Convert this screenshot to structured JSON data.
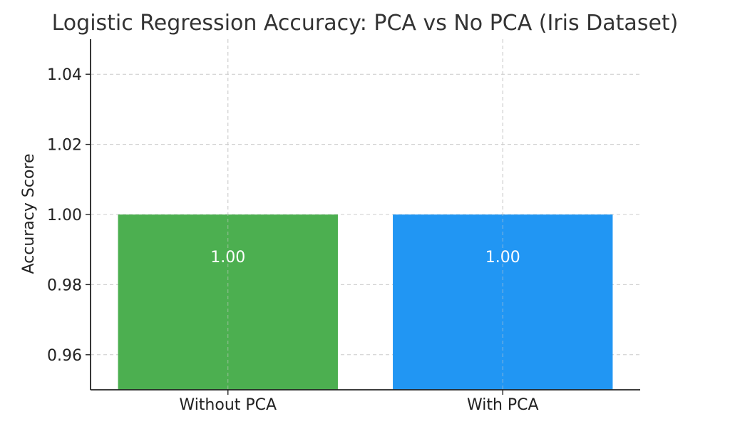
{
  "chart_data": {
    "type": "bar",
    "title": "Logistic Regression Accuracy: PCA vs No PCA (Iris Dataset)",
    "xlabel": "",
    "ylabel": "Accuracy Score",
    "categories": [
      "Without PCA",
      "With PCA"
    ],
    "values": [
      1.0,
      1.0
    ],
    "data_labels": [
      "1.00",
      "1.00"
    ],
    "colors": [
      "#4caf50",
      "#2196f3"
    ],
    "ylim": [
      0.95,
      1.05
    ],
    "yticks": [
      0.96,
      0.98,
      1.0,
      1.02,
      1.04
    ],
    "ytick_labels": [
      "0.96",
      "0.98",
      "1.00",
      "1.02",
      "1.04"
    ],
    "grid": true
  }
}
